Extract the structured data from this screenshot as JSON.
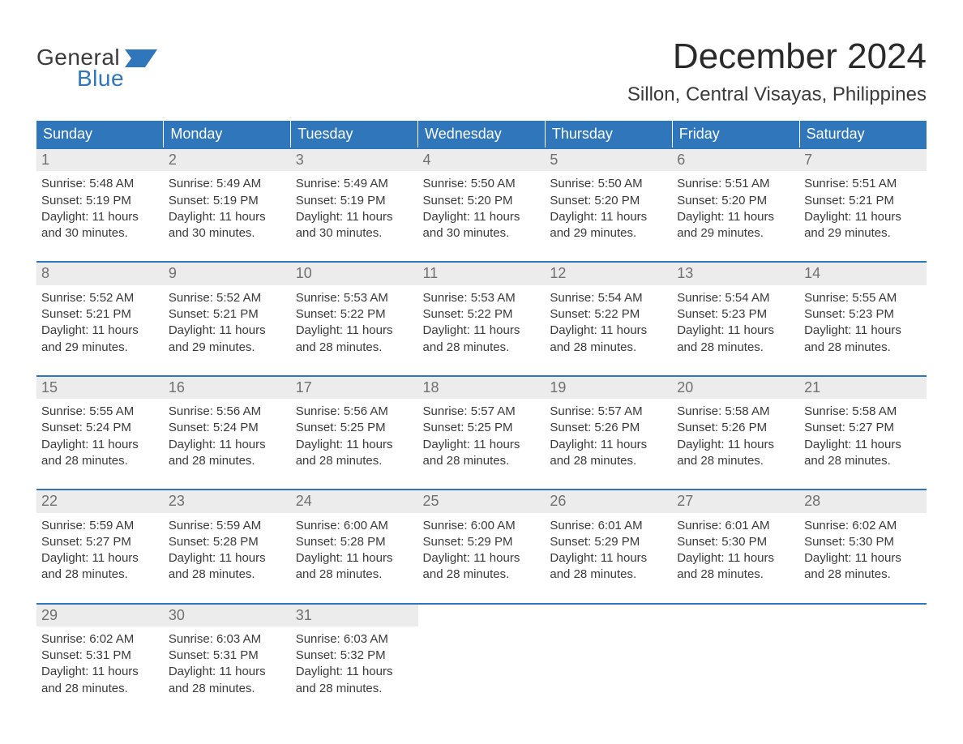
{
  "colors": {
    "header_bg": "#2f76bb",
    "header_text": "#ffffff",
    "week_border": "#2f76bb",
    "daynum_bg": "#ececec",
    "daynum_text": "#707070",
    "body_text": "#3a3a3a",
    "page_bg": "#ffffff",
    "logo_blue": "#2f76bb",
    "logo_dark": "#3a3a3a"
  },
  "typography": {
    "title_fontsize": 44,
    "location_fontsize": 24,
    "header_fontsize": 18,
    "daynum_fontsize": 18,
    "body_fontsize": 15,
    "logo_fontsize": 28
  },
  "logo": {
    "word1": "General",
    "word2": "Blue"
  },
  "title": "December 2024",
  "location": "Sillon, Central Visayas, Philippines",
  "day_headers": [
    "Sunday",
    "Monday",
    "Tuesday",
    "Wednesday",
    "Thursday",
    "Friday",
    "Saturday"
  ],
  "label_sunrise": "Sunrise: ",
  "label_sunset": "Sunset: ",
  "label_daylight1": "Daylight: ",
  "label_daylight2": "and ",
  "weeks": [
    [
      {
        "n": "1",
        "sr": "5:48 AM",
        "ss": "5:19 PM",
        "dh": "11 hours",
        "dm": "30 minutes."
      },
      {
        "n": "2",
        "sr": "5:49 AM",
        "ss": "5:19 PM",
        "dh": "11 hours",
        "dm": "30 minutes."
      },
      {
        "n": "3",
        "sr": "5:49 AM",
        "ss": "5:19 PM",
        "dh": "11 hours",
        "dm": "30 minutes."
      },
      {
        "n": "4",
        "sr": "5:50 AM",
        "ss": "5:20 PM",
        "dh": "11 hours",
        "dm": "30 minutes."
      },
      {
        "n": "5",
        "sr": "5:50 AM",
        "ss": "5:20 PM",
        "dh": "11 hours",
        "dm": "29 minutes."
      },
      {
        "n": "6",
        "sr": "5:51 AM",
        "ss": "5:20 PM",
        "dh": "11 hours",
        "dm": "29 minutes."
      },
      {
        "n": "7",
        "sr": "5:51 AM",
        "ss": "5:21 PM",
        "dh": "11 hours",
        "dm": "29 minutes."
      }
    ],
    [
      {
        "n": "8",
        "sr": "5:52 AM",
        "ss": "5:21 PM",
        "dh": "11 hours",
        "dm": "29 minutes."
      },
      {
        "n": "9",
        "sr": "5:52 AM",
        "ss": "5:21 PM",
        "dh": "11 hours",
        "dm": "29 minutes."
      },
      {
        "n": "10",
        "sr": "5:53 AM",
        "ss": "5:22 PM",
        "dh": "11 hours",
        "dm": "28 minutes."
      },
      {
        "n": "11",
        "sr": "5:53 AM",
        "ss": "5:22 PM",
        "dh": "11 hours",
        "dm": "28 minutes."
      },
      {
        "n": "12",
        "sr": "5:54 AM",
        "ss": "5:22 PM",
        "dh": "11 hours",
        "dm": "28 minutes."
      },
      {
        "n": "13",
        "sr": "5:54 AM",
        "ss": "5:23 PM",
        "dh": "11 hours",
        "dm": "28 minutes."
      },
      {
        "n": "14",
        "sr": "5:55 AM",
        "ss": "5:23 PM",
        "dh": "11 hours",
        "dm": "28 minutes."
      }
    ],
    [
      {
        "n": "15",
        "sr": "5:55 AM",
        "ss": "5:24 PM",
        "dh": "11 hours",
        "dm": "28 minutes."
      },
      {
        "n": "16",
        "sr": "5:56 AM",
        "ss": "5:24 PM",
        "dh": "11 hours",
        "dm": "28 minutes."
      },
      {
        "n": "17",
        "sr": "5:56 AM",
        "ss": "5:25 PM",
        "dh": "11 hours",
        "dm": "28 minutes."
      },
      {
        "n": "18",
        "sr": "5:57 AM",
        "ss": "5:25 PM",
        "dh": "11 hours",
        "dm": "28 minutes."
      },
      {
        "n": "19",
        "sr": "5:57 AM",
        "ss": "5:26 PM",
        "dh": "11 hours",
        "dm": "28 minutes."
      },
      {
        "n": "20",
        "sr": "5:58 AM",
        "ss": "5:26 PM",
        "dh": "11 hours",
        "dm": "28 minutes."
      },
      {
        "n": "21",
        "sr": "5:58 AM",
        "ss": "5:27 PM",
        "dh": "11 hours",
        "dm": "28 minutes."
      }
    ],
    [
      {
        "n": "22",
        "sr": "5:59 AM",
        "ss": "5:27 PM",
        "dh": "11 hours",
        "dm": "28 minutes."
      },
      {
        "n": "23",
        "sr": "5:59 AM",
        "ss": "5:28 PM",
        "dh": "11 hours",
        "dm": "28 minutes."
      },
      {
        "n": "24",
        "sr": "6:00 AM",
        "ss": "5:28 PM",
        "dh": "11 hours",
        "dm": "28 minutes."
      },
      {
        "n": "25",
        "sr": "6:00 AM",
        "ss": "5:29 PM",
        "dh": "11 hours",
        "dm": "28 minutes."
      },
      {
        "n": "26",
        "sr": "6:01 AM",
        "ss": "5:29 PM",
        "dh": "11 hours",
        "dm": "28 minutes."
      },
      {
        "n": "27",
        "sr": "6:01 AM",
        "ss": "5:30 PM",
        "dh": "11 hours",
        "dm": "28 minutes."
      },
      {
        "n": "28",
        "sr": "6:02 AM",
        "ss": "5:30 PM",
        "dh": "11 hours",
        "dm": "28 minutes."
      }
    ],
    [
      {
        "n": "29",
        "sr": "6:02 AM",
        "ss": "5:31 PM",
        "dh": "11 hours",
        "dm": "28 minutes."
      },
      {
        "n": "30",
        "sr": "6:03 AM",
        "ss": "5:31 PM",
        "dh": "11 hours",
        "dm": "28 minutes."
      },
      {
        "n": "31",
        "sr": "6:03 AM",
        "ss": "5:32 PM",
        "dh": "11 hours",
        "dm": "28 minutes."
      },
      null,
      null,
      null,
      null
    ]
  ]
}
